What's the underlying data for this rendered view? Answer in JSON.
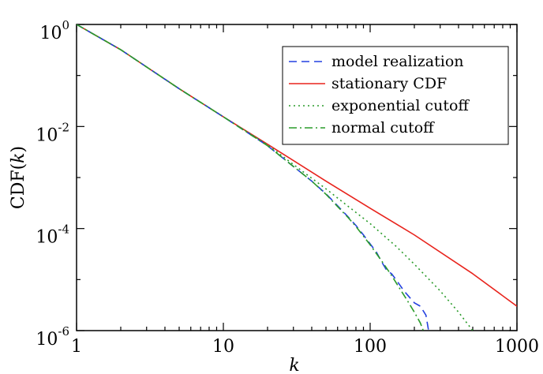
{
  "chart_data": {
    "type": "line",
    "xscale": "log",
    "yscale": "log",
    "xlim": [
      1,
      1000
    ],
    "ylim": [
      1e-06,
      1
    ],
    "xticks": [
      1,
      10,
      100,
      1000
    ],
    "xtick_labels": [
      "1",
      "10",
      "100",
      "1000"
    ],
    "yticks": [
      1e-06,
      0.0001,
      0.01,
      1
    ],
    "ytick_labels": [
      {
        "base": "10",
        "exp": "-6"
      },
      {
        "base": "10",
        "exp": "-4"
      },
      {
        "base": "10",
        "exp": "-2"
      },
      {
        "base": "10",
        "exp": "0"
      }
    ],
    "xlabel": "k",
    "ylabel": {
      "prefix": "CDF(",
      "var": "k",
      "suffix": ")"
    },
    "grid": false,
    "legend_position": "top-right",
    "series": [
      {
        "name": "model realization",
        "color": "#2440e0",
        "dash": "dashed",
        "x": [
          1,
          2,
          5,
          10,
          20,
          30,
          40,
          50,
          60,
          70,
          80,
          90,
          100,
          110,
          120,
          130,
          140,
          150,
          170,
          200,
          220,
          240,
          250
        ],
        "y": [
          1.0,
          0.32,
          0.055,
          0.0155,
          0.0042,
          0.00165,
          0.00085,
          0.00048,
          0.00028,
          0.000175,
          0.000115,
          7.5e-05,
          5e-05,
          3.5e-05,
          2.2e-05,
          1.5e-05,
          1.3e-05,
          1e-05,
          6e-06,
          3.5e-06,
          3e-06,
          2e-06,
          1e-06
        ]
      },
      {
        "name": "stationary CDF",
        "color": "#e8231c",
        "dash": "solid",
        "x": [
          1,
          2,
          5,
          10,
          20,
          50,
          100,
          200,
          500,
          1000
        ],
        "y": [
          1.0,
          0.32,
          0.055,
          0.0155,
          0.0045,
          0.00085,
          0.00025,
          7.5e-05,
          1.3e-05,
          3e-06
        ]
      },
      {
        "name": "exponential cutoff",
        "color": "#2a9b2a",
        "dash": "dotted",
        "x": [
          1,
          2,
          5,
          10,
          20,
          30,
          50,
          70,
          100,
          150,
          200,
          300,
          400,
          500
        ],
        "y": [
          1.0,
          0.32,
          0.055,
          0.0155,
          0.0044,
          0.0018,
          0.0006,
          0.00028,
          0.000125,
          4.5e-05,
          2e-05,
          6e-06,
          2.3e-06,
          1e-06
        ]
      },
      {
        "name": "normal cutoff",
        "color": "#2a9b2a",
        "dash": "dashdot",
        "x": [
          1,
          2,
          5,
          10,
          20,
          30,
          40,
          50,
          60,
          70,
          80,
          100,
          120,
          140,
          160,
          180,
          200,
          220,
          230
        ],
        "y": [
          1.0,
          0.32,
          0.055,
          0.0155,
          0.0042,
          0.00165,
          0.00085,
          0.00047,
          0.00027,
          0.00017,
          0.00011,
          4.8e-05,
          2.3e-05,
          1.2e-05,
          6.5e-06,
          3.8e-06,
          2.3e-06,
          1.4e-06,
          1e-06
        ]
      }
    ]
  }
}
